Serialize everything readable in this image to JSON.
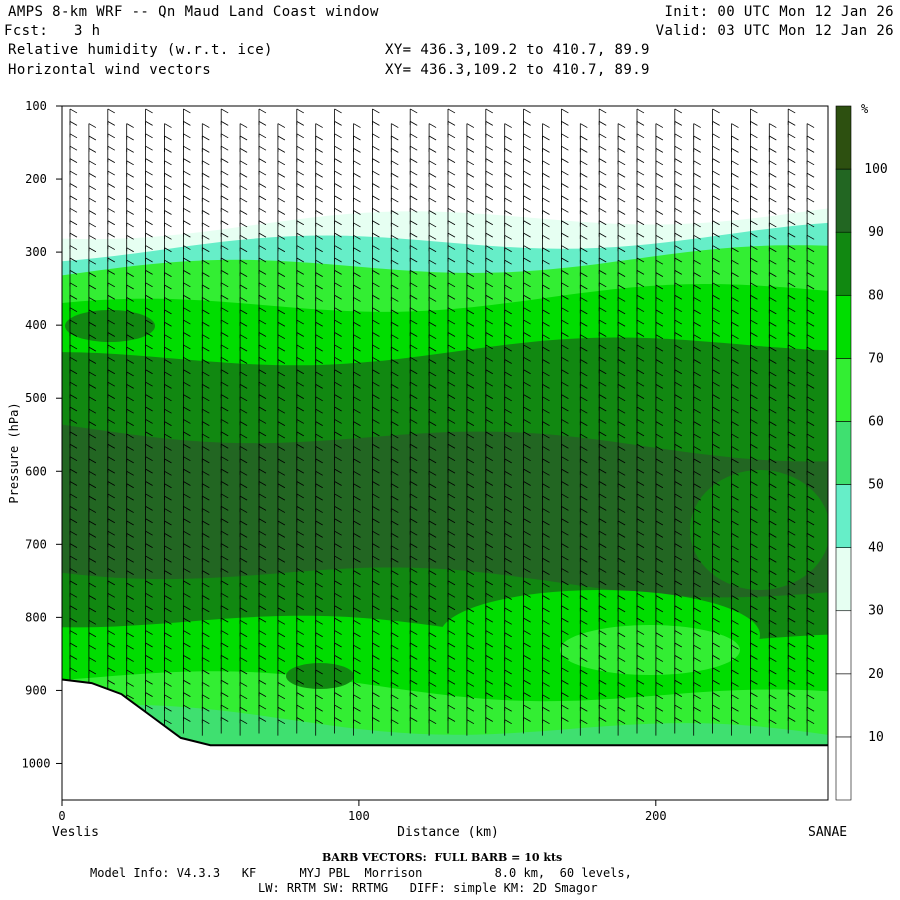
{
  "header": {
    "title": "AMPS 8-km WRF -- Qn Maud Land Coast window",
    "init": "Init: 00 UTC Mon 12 Jan 26",
    "fcst_label": "Fcst:",
    "fcst_value": "3 h",
    "valid": "Valid: 03 UTC Mon 12 Jan 26",
    "field1": "Relative humidity (w.r.t. ice)",
    "field2": "Horizontal wind vectors",
    "xy1": "XY= 436.3,109.2 to 410.7, 89.9",
    "xy2": "XY= 436.3,109.2 to 410.7, 89.9"
  },
  "footer": {
    "left_location": "Veslis",
    "right_location": "SANAE",
    "barb_note": "BARB VECTORS:  FULL BARB = 10 kts",
    "model_line1": "Model Info: V4.3.3   KF      MYJ PBL  Morrison          8.0 km,  60 levels,",
    "model_line2": "LW: RRTM SW: RRTMG   DIFF: simple KM: 2D Smagor"
  },
  "colors": {
    "rh_levels": [
      "#ffffff",
      "#ffffff",
      "#ffffff",
      "#e6fff2",
      "#a0f7dc",
      "#66eec8",
      "#3fe070",
      "#33ee33",
      "#00dd00",
      "#118811",
      "#226622",
      "#2d5010"
    ]
  },
  "chart_data": {
    "type": "heatmap",
    "title": "Relative humidity (w.r.t. ice)",
    "xlabel": "Distance (km)",
    "ylabel": "Pressure (hPa)",
    "x_ticks": [
      0,
      100,
      200
    ],
    "y_ticks": [
      100,
      200,
      300,
      400,
      500,
      600,
      700,
      800,
      900,
      1000
    ],
    "xlim": [
      0,
      258
    ],
    "ylim": [
      100,
      1050
    ],
    "colorbar": {
      "unit": "%",
      "ticks": [
        10,
        20,
        30,
        40,
        50,
        60,
        70,
        80,
        90,
        100
      ],
      "bins": [
        {
          "min": 0,
          "max": 10,
          "color": "#ffffff"
        },
        {
          "min": 10,
          "max": 20,
          "color": "#ffffff"
        },
        {
          "min": 20,
          "max": 30,
          "color": "#ffffff"
        },
        {
          "min": 30,
          "max": 40,
          "color": "#e6fff2"
        },
        {
          "min": 40,
          "max": 50,
          "color": "#66eec8"
        },
        {
          "min": 50,
          "max": 60,
          "color": "#3fe070"
        },
        {
          "min": 60,
          "max": 70,
          "color": "#33ee33"
        },
        {
          "min": 70,
          "max": 80,
          "color": "#00dd00"
        },
        {
          "min": 80,
          "max": 90,
          "color": "#118811"
        },
        {
          "min": 90,
          "max": 100,
          "color": "#226622"
        },
        {
          "min": 100,
          "max": 110,
          "color": "#2d5010"
        }
      ]
    },
    "rh_layers": [
      {
        "p_top": 100,
        "p_bot": 270,
        "rh": 15
      },
      {
        "p_top": 270,
        "p_bot": 300,
        "rh": 35
      },
      {
        "p_top": 300,
        "p_bot": 330,
        "rh": 45
      },
      {
        "p_top": 330,
        "p_bot": 380,
        "rh": 65
      },
      {
        "p_top": 380,
        "p_bot": 450,
        "rh": 75
      },
      {
        "p_top": 450,
        "p_bot": 540,
        "rh": 85
      },
      {
        "p_top": 540,
        "p_bot": 730,
        "rh": 95
      },
      {
        "p_top": 730,
        "p_bot": 800,
        "rh": 85
      },
      {
        "p_top": 800,
        "p_bot": 880,
        "rh": 75
      },
      {
        "p_top": 880,
        "p_bot": 930,
        "rh": 65
      },
      {
        "p_top": 930,
        "p_bot": 980,
        "rh": 55
      }
    ],
    "terrain": [
      {
        "x": 0,
        "p": 885
      },
      {
        "x": 10,
        "p": 890
      },
      {
        "x": 20,
        "p": 905
      },
      {
        "x": 30,
        "p": 935
      },
      {
        "x": 40,
        "p": 965
      },
      {
        "x": 50,
        "p": 975
      },
      {
        "x": 100,
        "p": 975
      },
      {
        "x": 258,
        "p": 975
      }
    ]
  }
}
